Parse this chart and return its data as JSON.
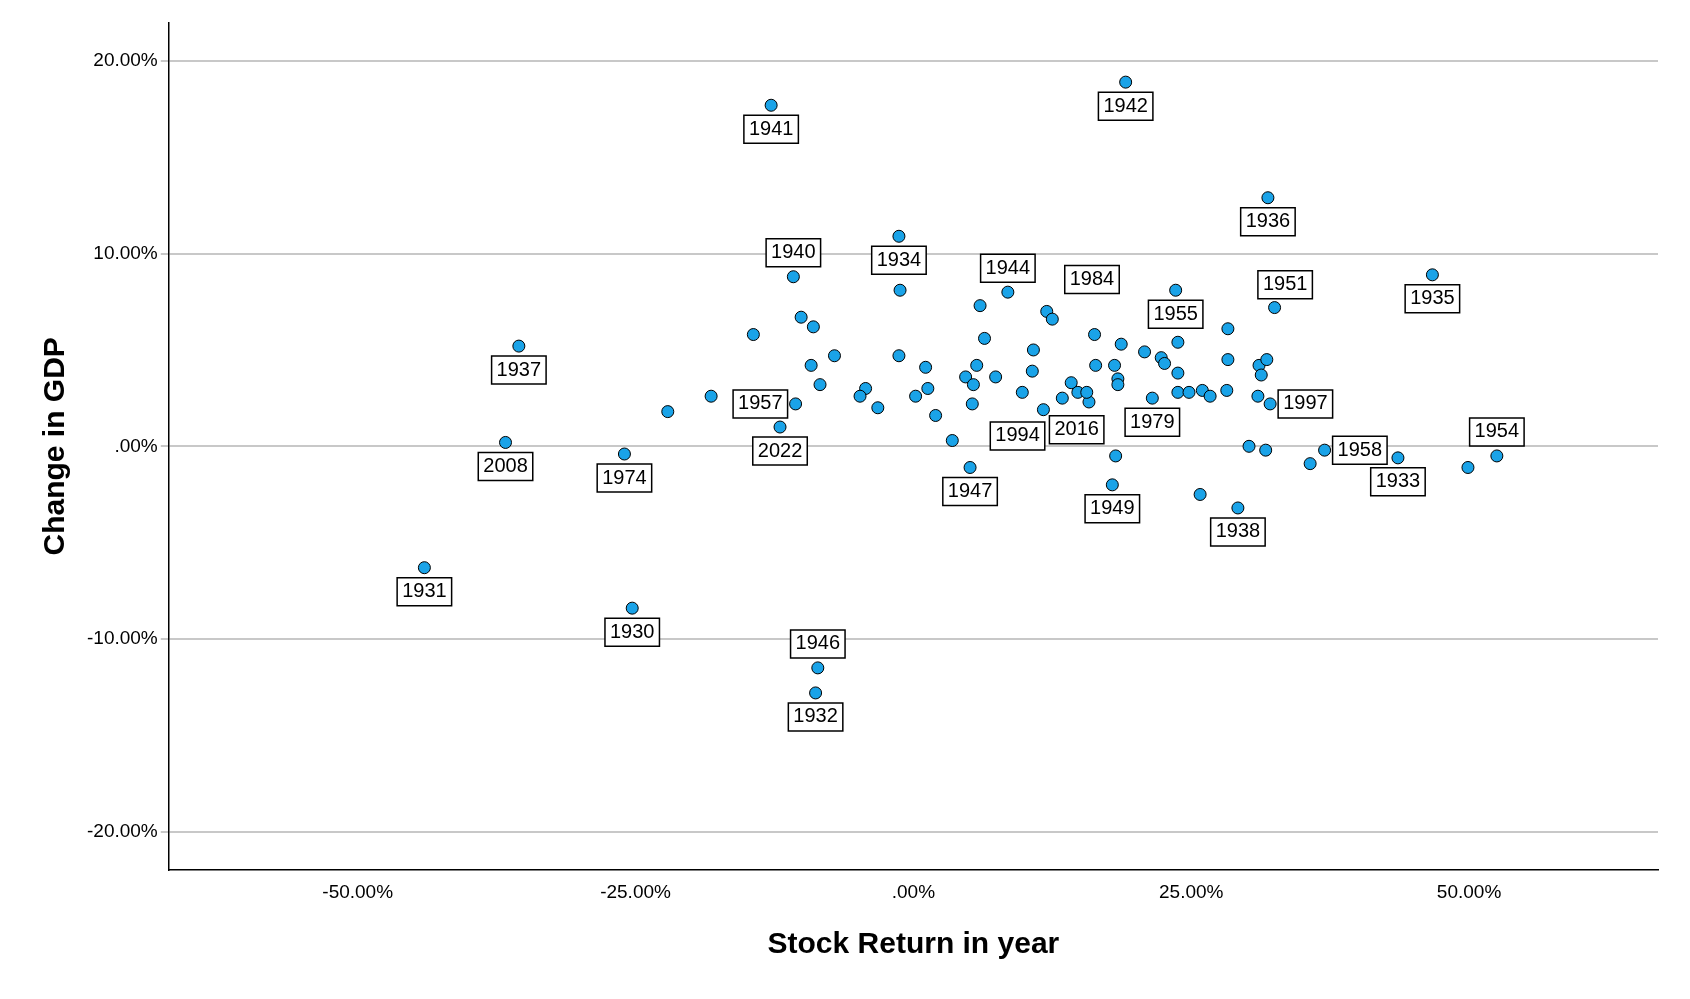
{
  "chart_data": {
    "type": "scatter",
    "xlabel": "Stock Return in year",
    "ylabel": "Change in GDP",
    "xlim": [
      -67,
      67
    ],
    "ylim": [
      -22,
      22
    ],
    "xticks": [
      {
        "value": -50,
        "label": "-50.00%"
      },
      {
        "value": -25,
        "label": "-25.00%"
      },
      {
        "value": 0,
        "label": ".00%"
      },
      {
        "value": 25,
        "label": "25.00%"
      },
      {
        "value": 50,
        "label": "50.00%"
      }
    ],
    "yticks": [
      {
        "value": -20,
        "label": "-20.00%"
      },
      {
        "value": -10,
        "label": "-10.00%"
      },
      {
        "value": 0,
        "label": ".00%"
      },
      {
        "value": 10,
        "label": "10.00%"
      },
      {
        "value": 20,
        "label": "20.00%"
      }
    ],
    "grid": "y",
    "marker": "circle",
    "legend": false,
    "series": [
      {
        "color": "#1aa3e8",
        "x": [
          -12.8,
          19.1,
          31.9,
          -1.3,
          8.5,
          23.6,
          46.7,
          -10.8,
          -35.5,
          28.3,
          12.0,
          32.1,
          21.5,
          5.3,
          -12.0,
          -10.6,
          11.7,
          -36.7,
          -26.0,
          5.1,
          17.9,
          37.0,
          43.6,
          52.5,
          29.2,
          -44.0,
          -25.3,
          -8.6,
          -8.8,
          -22.1,
          -18.2,
          -14.4,
          -10.1,
          -9.0,
          -7.1,
          -9.2,
          -8.4,
          -4.3,
          -4.8,
          -3.2,
          -1.3,
          -1.2,
          0.2,
          1.1,
          1.3,
          2.0,
          3.5,
          6.0,
          6.4,
          5.7,
          4.7,
          5.4,
          7.4,
          9.8,
          10.7,
          10.8,
          12.5,
          13.4,
          14.2,
          14.8,
          15.8,
          15.6,
          16.3,
          16.4,
          18.1,
          18.4,
          18.4,
          18.7,
          20.8,
          22.3,
          22.6,
          23.8,
          23.8,
          23.8,
          24.8,
          26.0,
          26.7,
          28.3,
          28.2,
          31.1,
          31.8,
          31.3,
          31.0,
          32.5,
          30.2,
          31.7,
          35.7,
          18.2,
          25.8,
          49.9
        ],
        "values": [
          17.7,
          18.9,
          12.9,
          10.9,
          8.0,
          8.1,
          8.9,
          8.8,
          5.2,
          6.1,
          7.0,
          2.2,
          2.5,
          2.2,
          1.0,
          2.2,
          1.9,
          0.2,
          -0.4,
          -1.1,
          -2.0,
          -0.2,
          -0.6,
          -0.5,
          -3.2,
          -6.3,
          -8.4,
          -11.5,
          -12.8,
          1.8,
          2.6,
          5.8,
          6.7,
          6.2,
          4.7,
          4.2,
          3.2,
          3.0,
          2.6,
          2.0,
          4.7,
          8.1,
          2.6,
          4.1,
          3.0,
          1.6,
          0.3,
          7.3,
          5.6,
          4.2,
          3.6,
          3.2,
          3.6,
          2.8,
          3.9,
          5.0,
          6.6,
          2.5,
          3.3,
          2.8,
          2.3,
          2.8,
          5.8,
          4.2,
          4.2,
          3.5,
          3.2,
          5.3,
          4.9,
          4.6,
          4.3,
          5.4,
          3.8,
          2.8,
          2.8,
          2.9,
          2.6,
          4.5,
          2.9,
          4.2,
          4.5,
          3.7,
          2.6,
          7.2,
          0.0,
          -0.2,
          -0.9,
          -0.5,
          -2.5,
          -1.1
        ]
      }
    ],
    "annotations": [
      {
        "text": "1941",
        "x": -12.8,
        "y": 17.7
      },
      {
        "text": "1942",
        "x": 19.1,
        "y": 18.9
      },
      {
        "text": "1936",
        "x": 31.9,
        "y": 12.9
      },
      {
        "text": "1934",
        "x": -1.3,
        "y": 10.9
      },
      {
        "text": "1944",
        "x": 8.5,
        "y": 8.0
      },
      {
        "text": "1955",
        "x": 23.6,
        "y": 8.1
      },
      {
        "text": "1935",
        "x": 46.7,
        "y": 8.9
      },
      {
        "text": "1940",
        "x": -10.8,
        "y": 8.8
      },
      {
        "text": "1937",
        "x": -35.5,
        "y": 5.2
      },
      {
        "text": "1951",
        "x": 28.3,
        "y": 6.1
      },
      {
        "text": "1984",
        "x": 12.0,
        "y": 7.0
      },
      {
        "text": "1997",
        "x": 32.1,
        "y": 2.2
      },
      {
        "text": "1979",
        "x": 21.5,
        "y": 2.5
      },
      {
        "text": "1994",
        "x": 5.3,
        "y": 2.2
      },
      {
        "text": "2022",
        "x": -12.0,
        "y": 1.0
      },
      {
        "text": "1957",
        "x": -10.6,
        "y": 2.2
      },
      {
        "text": "2016",
        "x": 11.7,
        "y": 1.9
      },
      {
        "text": "2008",
        "x": -36.7,
        "y": 0.2
      },
      {
        "text": "1974",
        "x": -26.0,
        "y": -0.4
      },
      {
        "text": "1947",
        "x": 5.1,
        "y": -1.1
      },
      {
        "text": "1949",
        "x": 17.9,
        "y": -2.0
      },
      {
        "text": "1958",
        "x": 37.0,
        "y": -0.2
      },
      {
        "text": "1933",
        "x": 43.6,
        "y": -0.6
      },
      {
        "text": "1954",
        "x": 52.5,
        "y": -0.5
      },
      {
        "text": "1938",
        "x": 29.2,
        "y": -3.2
      },
      {
        "text": "1931",
        "x": -44.0,
        "y": -6.3
      },
      {
        "text": "1930",
        "x": -25.3,
        "y": -8.4
      },
      {
        "text": "1946",
        "x": -8.6,
        "y": -11.5
      },
      {
        "text": "1932",
        "x": -8.8,
        "y": -12.8
      }
    ]
  }
}
